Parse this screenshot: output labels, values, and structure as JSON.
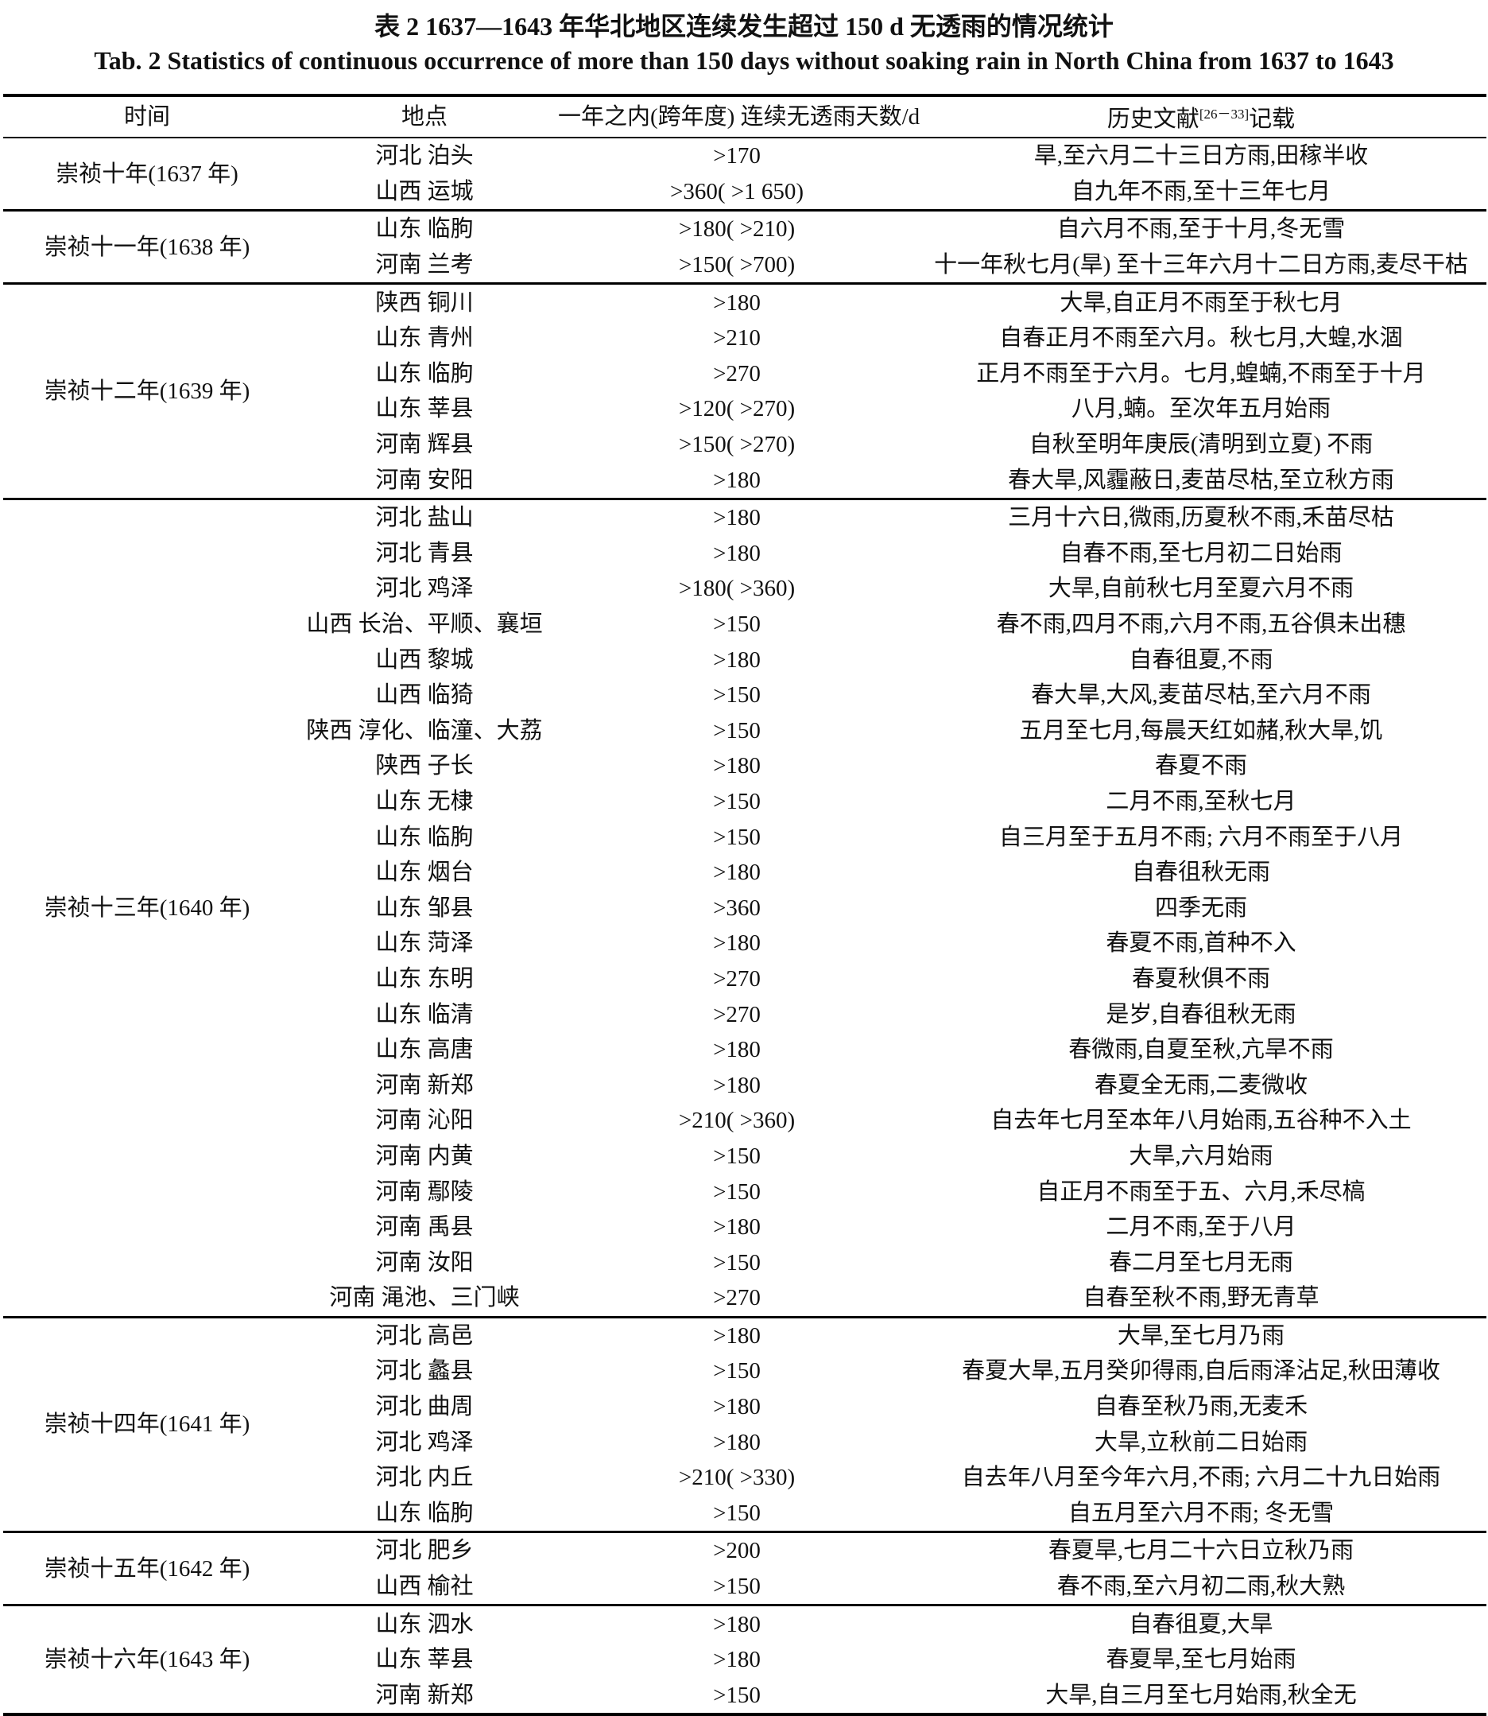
{
  "title_cn": "表 2   1637—1643 年华北地区连续发生超过 150 d 无透雨的情况统计",
  "title_en": "Tab. 2   Statistics of continuous occurrence of more than 150 days without soaking rain in North China from 1637 to 1643",
  "headers": {
    "time": "时间",
    "place": "地点",
    "days": "一年之内(跨年度) 连续无透雨天数/d",
    "record": "历史文献",
    "record_ref": "[26－33]",
    "record_suffix": "记载"
  },
  "groups": [
    {
      "time": "崇祯十年(1637 年)",
      "rows": [
        {
          "place": "河北 泊头",
          "days": ">170",
          "record": "旱,至六月二十三日方雨,田稼半收"
        },
        {
          "place": "山西 运城",
          "days": ">360( >1 650)",
          "record": "自九年不雨,至十三年七月"
        }
      ]
    },
    {
      "time": "崇祯十一年(1638 年)",
      "rows": [
        {
          "place": "山东 临朐",
          "days": ">180( >210)",
          "record": "自六月不雨,至于十月,冬无雪"
        },
        {
          "place": "河南 兰考",
          "days": ">150( >700)",
          "record": "十一年秋七月(旱) 至十三年六月十二日方雨,麦尽干枯"
        }
      ]
    },
    {
      "time": "崇祯十二年(1639 年)",
      "rows": [
        {
          "place": "陕西 铜川",
          "days": ">180",
          "record": "大旱,自正月不雨至于秋七月"
        },
        {
          "place": "山东 青州",
          "days": ">210",
          "record": "自春正月不雨至六月。秋七月,大蝗,水涸"
        },
        {
          "place": "山东 临朐",
          "days": ">270",
          "record": "正月不雨至于六月。七月,蝗蝻,不雨至于十月"
        },
        {
          "place": "山东 莘县",
          "days": ">120( >270)",
          "record": "八月,蝻。至次年五月始雨"
        },
        {
          "place": "河南 辉县",
          "days": ">150( >270)",
          "record": "自秋至明年庚辰(清明到立夏) 不雨"
        },
        {
          "place": "河南 安阳",
          "days": ">180",
          "record": "春大旱,风霾蔽日,麦苗尽枯,至立秋方雨"
        }
      ]
    },
    {
      "time": "崇祯十三年(1640 年)",
      "rows": [
        {
          "place": "河北 盐山",
          "days": ">180",
          "record": "三月十六日,微雨,历夏秋不雨,禾苗尽枯"
        },
        {
          "place": "河北 青县",
          "days": ">180",
          "record": "自春不雨,至七月初二日始雨"
        },
        {
          "place": "河北 鸡泽",
          "days": ">180( >360)",
          "record": "大旱,自前秋七月至夏六月不雨"
        },
        {
          "place": "山西 长治、平顺、襄垣",
          "days": ">150",
          "record": "春不雨,四月不雨,六月不雨,五谷俱未出穗"
        },
        {
          "place": "山西 黎城",
          "days": ">180",
          "record": "自春徂夏,不雨"
        },
        {
          "place": "山西 临猗",
          "days": ">150",
          "record": "春大旱,大风,麦苗尽枯,至六月不雨"
        },
        {
          "place": "陕西 淳化、临潼、大荔",
          "days": ">150",
          "record": "五月至七月,每晨天红如赭,秋大旱,饥"
        },
        {
          "place": "陕西 子长",
          "days": ">180",
          "record": "春夏不雨"
        },
        {
          "place": "山东 无棣",
          "days": ">150",
          "record": "二月不雨,至秋七月"
        },
        {
          "place": "山东 临朐",
          "days": ">150",
          "record": "自三月至于五月不雨; 六月不雨至于八月"
        },
        {
          "place": "山东 烟台",
          "days": ">180",
          "record": "自春徂秋无雨"
        },
        {
          "place": "山东 邹县",
          "days": ">360",
          "record": "四季无雨"
        },
        {
          "place": "山东 菏泽",
          "days": ">180",
          "record": "春夏不雨,首种不入"
        },
        {
          "place": "山东 东明",
          "days": ">270",
          "record": "春夏秋俱不雨"
        },
        {
          "place": "山东 临清",
          "days": ">270",
          "record": "是岁,自春徂秋无雨"
        },
        {
          "place": "山东 高唐",
          "days": ">180",
          "record": "春微雨,自夏至秋,亢旱不雨"
        },
        {
          "place": "河南 新郑",
          "days": ">180",
          "record": "春夏全无雨,二麦微收"
        },
        {
          "place": "河南 沁阳",
          "days": ">210( >360)",
          "record": "自去年七月至本年八月始雨,五谷种不入土"
        },
        {
          "place": "河南 内黄",
          "days": ">150",
          "record": "大旱,六月始雨"
        },
        {
          "place": "河南 鄢陵",
          "days": ">150",
          "record": "自正月不雨至于五、六月,禾尽槁"
        },
        {
          "place": "河南 禹县",
          "days": ">180",
          "record": "二月不雨,至于八月"
        },
        {
          "place": "河南 汝阳",
          "days": ">150",
          "record": "春二月至七月无雨"
        },
        {
          "place": "河南 渑池、三门峡",
          "days": ">270",
          "record": "自春至秋不雨,野无青草"
        }
      ]
    },
    {
      "time": "崇祯十四年(1641 年)",
      "rows": [
        {
          "place": "河北 高邑",
          "days": ">180",
          "record": "大旱,至七月乃雨"
        },
        {
          "place": "河北 蠡县",
          "days": ">150",
          "record": "春夏大旱,五月癸卯得雨,自后雨泽沾足,秋田薄收"
        },
        {
          "place": "河北 曲周",
          "days": ">180",
          "record": "自春至秋乃雨,无麦禾"
        },
        {
          "place": "河北 鸡泽",
          "days": ">180",
          "record": "大旱,立秋前二日始雨"
        },
        {
          "place": "河北 内丘",
          "days": ">210( >330)",
          "record": "自去年八月至今年六月,不雨; 六月二十九日始雨"
        },
        {
          "place": "山东 临朐",
          "days": ">150",
          "record": "自五月至六月不雨; 冬无雪"
        }
      ]
    },
    {
      "time": "崇祯十五年(1642 年)",
      "rows": [
        {
          "place": "河北 肥乡",
          "days": ">200",
          "record": "春夏旱,七月二十六日立秋乃雨"
        },
        {
          "place": "山西 榆社",
          "days": ">150",
          "record": "春不雨,至六月初二雨,秋大熟"
        }
      ]
    },
    {
      "time": "崇祯十六年(1643 年)",
      "rows": [
        {
          "place": "山东 泗水",
          "days": ">180",
          "record": "自春徂夏,大旱"
        },
        {
          "place": "山东 莘县",
          "days": ">180",
          "record": "春夏旱,至七月始雨"
        },
        {
          "place": "河南 新郑",
          "days": ">150",
          "record": "大旱,自三月至七月始雨,秋全无"
        }
      ]
    }
  ]
}
